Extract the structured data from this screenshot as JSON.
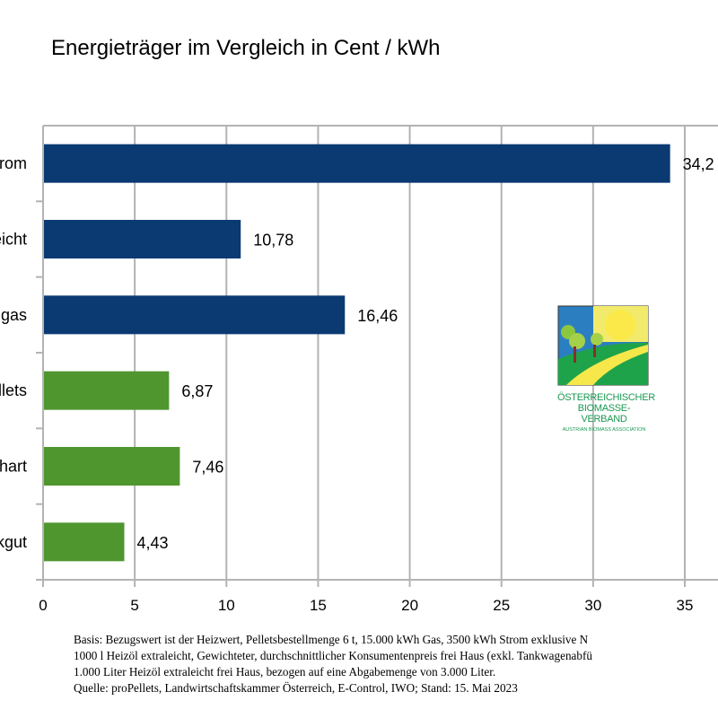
{
  "chart_data": {
    "type": "bar",
    "orientation": "horizontal",
    "title": "Energieträger im Vergleich in Cent / kWh",
    "categories": [
      "Strom",
      "Heizöl extraleicht",
      "Erdgas",
      "Pellets",
      "Brennholz hart",
      "Hackgut"
    ],
    "values": [
      34.2,
      10.78,
      16.46,
      6.87,
      7.46,
      4.43
    ],
    "data_labels": [
      "34,2",
      "10,78",
      "16,46",
      "6,87",
      "7,46",
      "4,43"
    ],
    "bar_colors": [
      "#0b3a73",
      "#0b3a73",
      "#0b3a73",
      "#4f962f",
      "#4f962f",
      "#4f962f"
    ],
    "xlim": [
      0,
      35
    ],
    "xticks": [
      "0",
      "5",
      "10",
      "15",
      "20",
      "25",
      "30",
      "35"
    ],
    "xlabel": "",
    "ylabel": "",
    "grid": true,
    "legend": "none"
  },
  "logo": {
    "line1": "ÖSTERREICHISCHER",
    "line2": "BIOMASSE-VERBAND",
    "line3": "AUSTRIAN BIOMASS ASSOCIATION"
  },
  "notes": [
    "Basis: Bezugswert ist der Heizwert, Pelletsbestellmenge 6 t, 15.000 kWh Gas, 3500 kWh Strom exklusive N",
    "1000 l Heizöl extraleicht, Gewichteter, durchschnittlicher Konsumentenpreis frei Haus (exkl. Tankwagenabfü",
    "1.000 Liter Heizöl extraleicht frei Haus, bezogen auf eine Abgabemenge von 3.000 Liter.",
    "Quelle: proPellets, Landwirtschaftskammer Österreich, E-Control, IWO; Stand: 15. Mai 2023"
  ]
}
